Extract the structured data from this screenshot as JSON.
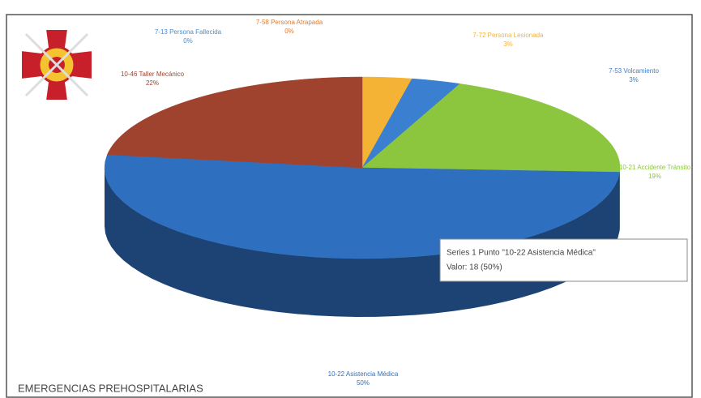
{
  "chart_data": {
    "type": "pie3d",
    "title": "EMERGENCIAS PREHOSPITALARIAS",
    "categories": [
      "7-13 Persona Fallecida",
      "7-58 Persona Atrapada",
      "7-72 Persona Lesionada",
      "7-53 Volcamiento",
      "10-21 Accidente Tránsito",
      "10-22 Asistencia Médica",
      "10-46 Taller Mecánico"
    ],
    "values": [
      0,
      0,
      3,
      3,
      19,
      50,
      22
    ],
    "value_labels": [
      "0%",
      "0%",
      "3%",
      "3%",
      "19%",
      "50%",
      "22%"
    ],
    "colors": [
      "#3f8fd8",
      "#e07b30",
      "#f5b335",
      "#3a7fd0",
      "#8cc63f",
      "#2e6fbf",
      "#a0432e"
    ],
    "tooltip": {
      "line1": "Series 1 Punto \"10-22 Asistencia Médica\"",
      "line2": "Valor: 18 (50%)"
    }
  }
}
